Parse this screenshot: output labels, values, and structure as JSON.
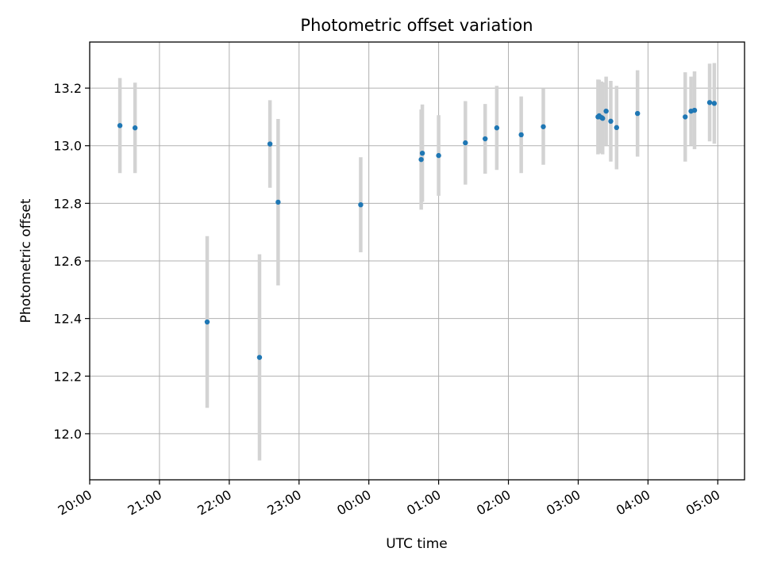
{
  "chart_data": {
    "type": "scatter",
    "title": "Photometric offset variation",
    "xlabel": "UTC time",
    "ylabel": "Photometric offset",
    "xlim": [
      "20:00",
      "05:23"
    ],
    "ylim": [
      11.84,
      13.36
    ],
    "x_ticks": [
      "20:00",
      "21:00",
      "22:00",
      "23:00",
      "00:00",
      "01:00",
      "02:00",
      "03:00",
      "04:00",
      "05:00"
    ],
    "y_ticks": [
      "12.0",
      "12.2",
      "12.4",
      "12.6",
      "12.8",
      "13.0",
      "13.2"
    ],
    "grid": true,
    "legend": "none",
    "colors": {
      "point": "#1f77b4",
      "errorbar": "#d3d3d3",
      "grid": "#b0b0b0"
    },
    "points": [
      {
        "t": "20:26",
        "y": 13.07,
        "err": 0.165
      },
      {
        "t": "20:39",
        "y": 13.062,
        "err": 0.157
      },
      {
        "t": "21:41",
        "y": 12.388,
        "err": 0.298
      },
      {
        "t": "22:26",
        "y": 12.265,
        "err": 0.358
      },
      {
        "t": "22:35",
        "y": 13.006,
        "err": 0.152
      },
      {
        "t": "22:42",
        "y": 12.804,
        "err": 0.289
      },
      {
        "t": "23:53",
        "y": 12.795,
        "err": 0.165
      },
      {
        "t": "00:45",
        "y": 12.952,
        "err": 0.174
      },
      {
        "t": "00:46",
        "y": 12.974,
        "err": 0.169
      },
      {
        "t": "01:00",
        "y": 12.966,
        "err": 0.14
      },
      {
        "t": "01:23",
        "y": 13.01,
        "err": 0.145
      },
      {
        "t": "01:40",
        "y": 13.024,
        "err": 0.121
      },
      {
        "t": "01:50",
        "y": 13.062,
        "err": 0.146
      },
      {
        "t": "02:11",
        "y": 13.038,
        "err": 0.133
      },
      {
        "t": "02:30",
        "y": 13.066,
        "err": 0.132
      },
      {
        "t": "03:17",
        "y": 13.1,
        "err": 0.13
      },
      {
        "t": "03:18",
        "y": 13.104,
        "err": 0.125
      },
      {
        "t": "03:20",
        "y": 13.098,
        "err": 0.125
      },
      {
        "t": "03:21",
        "y": 13.095,
        "err": 0.125
      },
      {
        "t": "03:24",
        "y": 13.12,
        "err": 0.12
      },
      {
        "t": "03:28",
        "y": 13.085,
        "err": 0.14
      },
      {
        "t": "03:33",
        "y": 13.063,
        "err": 0.145
      },
      {
        "t": "03:51",
        "y": 13.112,
        "err": 0.15
      },
      {
        "t": "04:32",
        "y": 13.1,
        "err": 0.155
      },
      {
        "t": "04:37",
        "y": 13.12,
        "err": 0.12
      },
      {
        "t": "04:40",
        "y": 13.123,
        "err": 0.135
      },
      {
        "t": "04:53",
        "y": 13.15,
        "err": 0.135
      },
      {
        "t": "04:57",
        "y": 13.147,
        "err": 0.14
      }
    ]
  }
}
